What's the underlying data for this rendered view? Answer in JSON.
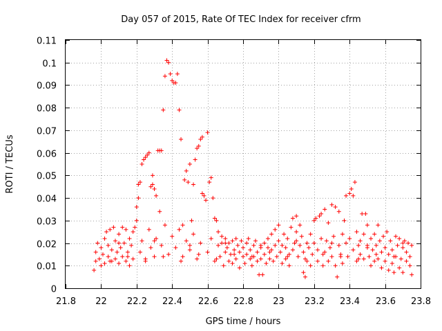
{
  "chart_data": {
    "type": "scatter",
    "title": "Day 057 of 2015, Rate Of TEC Index for receiver cfrm",
    "xlabel": "GPS time / hours",
    "ylabel": "ROTI / TECUs",
    "xlim": [
      21.8,
      23.8
    ],
    "ylim": [
      0,
      0.11
    ],
    "xticks": [
      21.8,
      22.0,
      22.2,
      22.4,
      22.6,
      22.8,
      23.0,
      23.2,
      23.4,
      23.6,
      23.8
    ],
    "xtick_labels": [
      "21.8",
      "22",
      "22.2",
      "22.4",
      "22.6",
      "22.8",
      "23",
      "23.2",
      "23.4",
      "23.6",
      "23.8"
    ],
    "yticks": [
      0,
      0.01,
      0.02,
      0.03,
      0.04,
      0.05,
      0.06,
      0.07,
      0.08,
      0.09,
      0.1,
      0.11
    ],
    "ytick_labels": [
      "0",
      "0.01",
      "0.02",
      "0.03",
      "0.04",
      "0.05",
      "0.06",
      "0.07",
      "0.08",
      "0.09",
      "0.1",
      "0.11"
    ],
    "grid": true,
    "marker": "+",
    "color": "#ff0000",
    "series": [
      {
        "name": "ROTI",
        "points": [
          [
            21.96,
            0.008
          ],
          [
            21.97,
            0.012
          ],
          [
            21.97,
            0.016
          ],
          [
            21.98,
            0.02
          ],
          [
            21.99,
            0.013
          ],
          [
            22.0,
            0.01
          ],
          [
            22.0,
            0.018
          ],
          [
            22.01,
            0.015
          ],
          [
            22.02,
            0.022
          ],
          [
            22.02,
            0.011
          ],
          [
            22.03,
            0.025
          ],
          [
            22.04,
            0.014
          ],
          [
            22.04,
            0.019
          ],
          [
            22.05,
            0.026
          ],
          [
            22.06,
            0.012
          ],
          [
            22.06,
            0.017
          ],
          [
            22.07,
            0.027
          ],
          [
            22.08,
            0.013
          ],
          [
            22.08,
            0.021
          ],
          [
            22.09,
            0.016
          ],
          [
            22.1,
            0.024
          ],
          [
            22.1,
            0.011
          ],
          [
            22.11,
            0.018
          ],
          [
            22.12,
            0.027
          ],
          [
            22.12,
            0.014
          ],
          [
            22.13,
            0.02
          ],
          [
            22.14,
            0.012
          ],
          [
            22.14,
            0.026
          ],
          [
            22.15,
            0.016
          ],
          [
            22.16,
            0.022
          ],
          [
            22.16,
            0.01
          ],
          [
            22.17,
            0.019
          ],
          [
            22.18,
            0.025
          ],
          [
            22.18,
            0.013
          ],
          [
            22.19,
            0.027
          ],
          [
            22.2,
            0.03
          ],
          [
            22.2,
            0.036
          ],
          [
            22.21,
            0.046
          ],
          [
            22.21,
            0.04
          ],
          [
            22.22,
            0.047
          ],
          [
            22.22,
            0.016
          ],
          [
            22.23,
            0.055
          ],
          [
            22.23,
            0.021
          ],
          [
            22.24,
            0.057
          ],
          [
            22.25,
            0.058
          ],
          [
            22.25,
            0.012
          ],
          [
            22.26,
            0.059
          ],
          [
            22.27,
            0.06
          ],
          [
            22.27,
            0.026
          ],
          [
            22.28,
            0.045
          ],
          [
            22.28,
            0.018
          ],
          [
            22.29,
            0.046
          ],
          [
            22.29,
            0.05
          ],
          [
            22.3,
            0.044
          ],
          [
            22.3,
            0.014
          ],
          [
            22.31,
            0.041
          ],
          [
            22.31,
            0.022
          ],
          [
            22.32,
            0.061
          ],
          [
            22.33,
            0.061
          ],
          [
            22.33,
            0.034
          ],
          [
            22.34,
            0.061
          ],
          [
            22.34,
            0.019
          ],
          [
            22.35,
            0.079
          ],
          [
            22.36,
            0.094
          ],
          [
            22.36,
            0.028
          ],
          [
            22.37,
            0.101
          ],
          [
            22.38,
            0.1
          ],
          [
            22.38,
            0.015
          ],
          [
            22.39,
            0.095
          ],
          [
            22.4,
            0.092
          ],
          [
            22.4,
            0.023
          ],
          [
            22.41,
            0.091
          ],
          [
            22.42,
            0.091
          ],
          [
            22.42,
            0.018
          ],
          [
            22.43,
            0.095
          ],
          [
            22.44,
            0.079
          ],
          [
            22.44,
            0.026
          ],
          [
            22.45,
            0.066
          ],
          [
            22.46,
            0.028
          ],
          [
            22.46,
            0.014
          ],
          [
            22.47,
            0.048
          ],
          [
            22.48,
            0.052
          ],
          [
            22.48,
            0.021
          ],
          [
            22.49,
            0.047
          ],
          [
            22.5,
            0.055
          ],
          [
            22.5,
            0.017
          ],
          [
            22.51,
            0.03
          ],
          [
            22.52,
            0.046
          ],
          [
            22.52,
            0.024
          ],
          [
            22.53,
            0.057
          ],
          [
            22.54,
            0.062
          ],
          [
            22.54,
            0.013
          ],
          [
            22.55,
            0.063
          ],
          [
            22.56,
            0.066
          ],
          [
            22.56,
            0.02
          ],
          [
            22.57,
            0.042
          ],
          [
            22.57,
            0.067
          ],
          [
            22.58,
            0.041
          ],
          [
            22.59,
            0.039
          ],
          [
            22.6,
            0.069
          ],
          [
            22.6,
            0.016
          ],
          [
            22.61,
            0.047
          ],
          [
            22.62,
            0.049
          ],
          [
            22.62,
            0.022
          ],
          [
            22.63,
            0.04
          ],
          [
            22.64,
            0.031
          ],
          [
            22.64,
            0.012
          ],
          [
            22.65,
            0.03
          ],
          [
            22.66,
            0.019
          ],
          [
            22.66,
            0.025
          ],
          [
            22.67,
            0.014
          ],
          [
            22.68,
            0.02
          ],
          [
            22.68,
            0.023
          ],
          [
            22.69,
            0.01
          ],
          [
            22.7,
            0.016
          ],
          [
            22.7,
            0.022
          ],
          [
            22.71,
            0.018
          ],
          [
            22.72,
            0.012
          ],
          [
            22.72,
            0.02
          ],
          [
            22.73,
            0.015
          ],
          [
            22.74,
            0.021
          ],
          [
            22.74,
            0.011
          ],
          [
            22.75,
            0.017
          ],
          [
            22.76,
            0.022
          ],
          [
            22.76,
            0.013
          ],
          [
            22.77,
            0.019
          ],
          [
            22.78,
            0.009
          ],
          [
            22.78,
            0.016
          ],
          [
            22.79,
            0.021
          ],
          [
            22.8,
            0.014
          ],
          [
            22.8,
            0.018
          ],
          [
            22.81,
            0.011
          ],
          [
            22.82,
            0.02
          ],
          [
            22.82,
            0.015
          ],
          [
            22.83,
            0.022
          ],
          [
            22.84,
            0.013
          ],
          [
            22.84,
            0.017
          ],
          [
            22.85,
            0.01
          ],
          [
            22.86,
            0.019
          ],
          [
            22.86,
            0.014
          ],
          [
            22.87,
            0.021
          ],
          [
            22.88,
            0.012
          ],
          [
            22.88,
            0.016
          ],
          [
            22.89,
            0.006
          ],
          [
            22.9,
            0.018
          ],
          [
            22.9,
            0.013
          ],
          [
            22.91,
            0.006
          ],
          [
            22.92,
            0.02
          ],
          [
            22.92,
            0.015
          ],
          [
            22.93,
            0.011
          ],
          [
            22.94,
            0.018
          ],
          [
            22.94,
            0.022
          ],
          [
            22.95,
            0.013
          ],
          [
            22.96,
            0.017
          ],
          [
            22.96,
            0.024
          ],
          [
            22.97,
            0.012
          ],
          [
            22.98,
            0.019
          ],
          [
            22.98,
            0.026
          ],
          [
            22.99,
            0.014
          ],
          [
            23.0,
            0.021
          ],
          [
            23.0,
            0.028
          ],
          [
            23.01,
            0.016
          ],
          [
            23.02,
            0.011
          ],
          [
            23.02,
            0.019
          ],
          [
            23.03,
            0.024
          ],
          [
            23.04,
            0.013
          ],
          [
            23.04,
            0.018
          ],
          [
            23.05,
            0.022
          ],
          [
            23.06,
            0.015
          ],
          [
            23.06,
            0.01
          ],
          [
            23.07,
            0.027
          ],
          [
            23.08,
            0.031
          ],
          [
            23.08,
            0.017
          ],
          [
            23.09,
            0.02
          ],
          [
            23.1,
            0.025
          ],
          [
            23.1,
            0.032
          ],
          [
            23.11,
            0.014
          ],
          [
            23.12,
            0.019
          ],
          [
            23.12,
            0.028
          ],
          [
            23.13,
            0.023
          ],
          [
            23.14,
            0.007
          ],
          [
            23.14,
            0.016
          ],
          [
            23.15,
            0.005
          ],
          [
            23.16,
            0.02
          ],
          [
            23.16,
            0.012
          ],
          [
            23.17,
            0.018
          ],
          [
            23.18,
            0.024
          ],
          [
            23.18,
            0.01
          ],
          [
            23.19,
            0.015
          ],
          [
            23.2,
            0.02
          ],
          [
            23.2,
            0.03
          ],
          [
            23.21,
            0.031
          ],
          [
            23.22,
            0.012
          ],
          [
            23.22,
            0.017
          ],
          [
            23.23,
            0.032
          ],
          [
            23.24,
            0.022
          ],
          [
            23.24,
            0.033
          ],
          [
            23.25,
            0.01
          ],
          [
            23.26,
            0.035
          ],
          [
            23.26,
            0.016
          ],
          [
            23.27,
            0.021
          ],
          [
            23.28,
            0.012
          ],
          [
            23.28,
            0.029
          ],
          [
            23.29,
            0.018
          ],
          [
            23.3,
            0.037
          ],
          [
            23.3,
            0.014
          ],
          [
            23.31,
            0.023
          ],
          [
            23.32,
            0.01
          ],
          [
            23.32,
            0.036
          ],
          [
            23.33,
            0.005
          ],
          [
            23.34,
            0.019
          ],
          [
            23.34,
            0.034
          ],
          [
            23.35,
            0.015
          ],
          [
            23.36,
            0.024
          ],
          [
            23.36,
            0.011
          ],
          [
            23.37,
            0.03
          ],
          [
            23.38,
            0.02
          ],
          [
            23.38,
            0.041
          ],
          [
            23.39,
            0.014
          ],
          [
            23.4,
            0.042
          ],
          [
            23.4,
            0.022
          ],
          [
            23.41,
            0.044
          ],
          [
            23.42,
            0.017
          ],
          [
            23.42,
            0.041
          ],
          [
            23.43,
            0.047
          ],
          [
            23.44,
            0.012
          ],
          [
            23.44,
            0.025
          ],
          [
            23.45,
            0.019
          ],
          [
            23.46,
            0.015
          ],
          [
            23.46,
            0.021
          ],
          [
            23.47,
            0.033
          ],
          [
            23.48,
            0.024
          ],
          [
            23.48,
            0.013
          ],
          [
            23.49,
            0.033
          ],
          [
            23.5,
            0.018
          ],
          [
            23.5,
            0.028
          ],
          [
            23.51,
            0.014
          ],
          [
            23.52,
            0.022
          ],
          [
            23.52,
            0.01
          ],
          [
            23.53,
            0.017
          ],
          [
            23.54,
            0.024
          ],
          [
            23.54,
            0.012
          ],
          [
            23.55,
            0.019
          ],
          [
            23.56,
            0.028
          ],
          [
            23.56,
            0.013
          ],
          [
            23.57,
            0.021
          ],
          [
            23.58,
            0.009
          ],
          [
            23.58,
            0.016
          ],
          [
            23.59,
            0.023
          ],
          [
            23.6,
            0.012
          ],
          [
            23.6,
            0.018
          ],
          [
            23.61,
            0.025
          ],
          [
            23.62,
            0.008
          ],
          [
            23.62,
            0.015
          ],
          [
            23.63,
            0.021
          ],
          [
            23.64,
            0.011
          ],
          [
            23.64,
            0.017
          ],
          [
            23.65,
            0.007
          ],
          [
            23.66,
            0.023
          ],
          [
            23.66,
            0.014
          ],
          [
            23.67,
            0.019
          ],
          [
            23.68,
            0.009
          ],
          [
            23.68,
            0.022
          ],
          [
            23.69,
            0.013
          ],
          [
            23.7,
            0.018
          ],
          [
            23.7,
            0.007
          ],
          [
            23.71,
            0.021
          ],
          [
            23.72,
            0.012
          ],
          [
            23.72,
            0.016
          ],
          [
            23.73,
            0.02
          ],
          [
            23.74,
            0.01
          ],
          [
            23.74,
            0.014
          ],
          [
            23.75,
            0.006
          ],
          [
            23.75,
            0.019
          ],
          [
            22.05,
            0.012
          ],
          [
            22.15,
            0.014
          ],
          [
            22.25,
            0.013
          ],
          [
            22.35,
            0.014
          ],
          [
            22.45,
            0.012
          ],
          [
            22.55,
            0.015
          ],
          [
            22.65,
            0.013
          ],
          [
            22.75,
            0.015
          ],
          [
            22.85,
            0.014
          ],
          [
            22.95,
            0.016
          ],
          [
            23.05,
            0.014
          ],
          [
            23.15,
            0.013
          ],
          [
            23.25,
            0.015
          ],
          [
            23.35,
            0.014
          ],
          [
            23.45,
            0.013
          ],
          [
            23.55,
            0.015
          ],
          [
            23.65,
            0.014
          ],
          [
            22.1,
            0.02
          ],
          [
            22.3,
            0.021
          ],
          [
            22.5,
            0.019
          ],
          [
            22.7,
            0.02
          ],
          [
            22.9,
            0.019
          ],
          [
            23.1,
            0.021
          ],
          [
            23.3,
            0.02
          ],
          [
            23.5,
            0.019
          ],
          [
            23.7,
            0.02
          ]
        ]
      }
    ]
  }
}
